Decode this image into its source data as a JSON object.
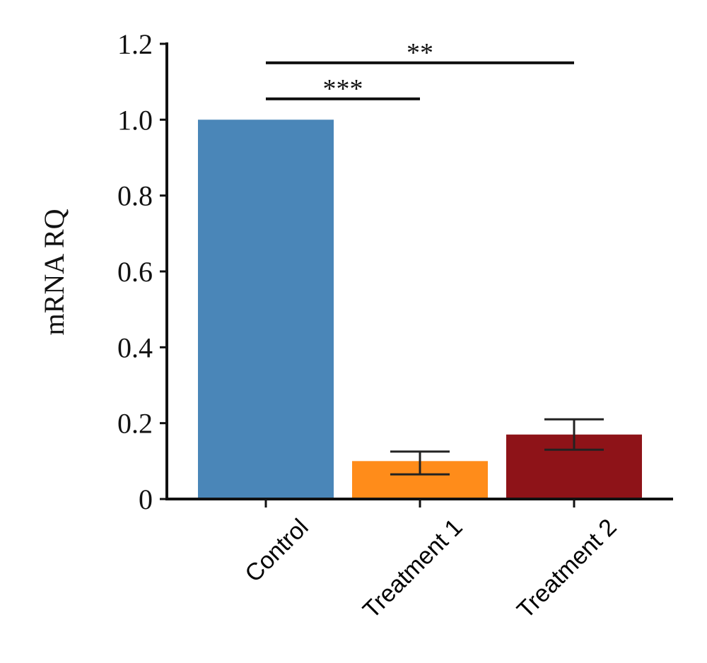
{
  "chart_data": {
    "type": "bar",
    "categories": [
      "Control",
      "Treatment 1",
      "Treatment 2"
    ],
    "values": [
      1.0,
      0.1,
      0.17
    ],
    "error_high": [
      null,
      0.125,
      0.21
    ],
    "error_low": [
      null,
      0.065,
      0.13
    ],
    "colors": [
      "#4a86b8",
      "#ff8c1a",
      "#8e1318"
    ],
    "ylabel": "mRNA RQ",
    "ylim": [
      0,
      1.2
    ],
    "yticks": [
      0,
      0.2,
      0.4,
      0.6,
      0.8,
      1.0,
      1.2
    ],
    "ytick_labels": [
      "0",
      "0.2",
      "0.4",
      "0.6",
      "0.8",
      "1.0",
      "1.2"
    ],
    "grid": false,
    "significance": [
      {
        "from": "Control",
        "to": "Treatment 1",
        "y": 1.055,
        "label": "***"
      },
      {
        "from": "Control",
        "to": "Treatment 2",
        "y": 1.15,
        "label": "**"
      }
    ]
  }
}
